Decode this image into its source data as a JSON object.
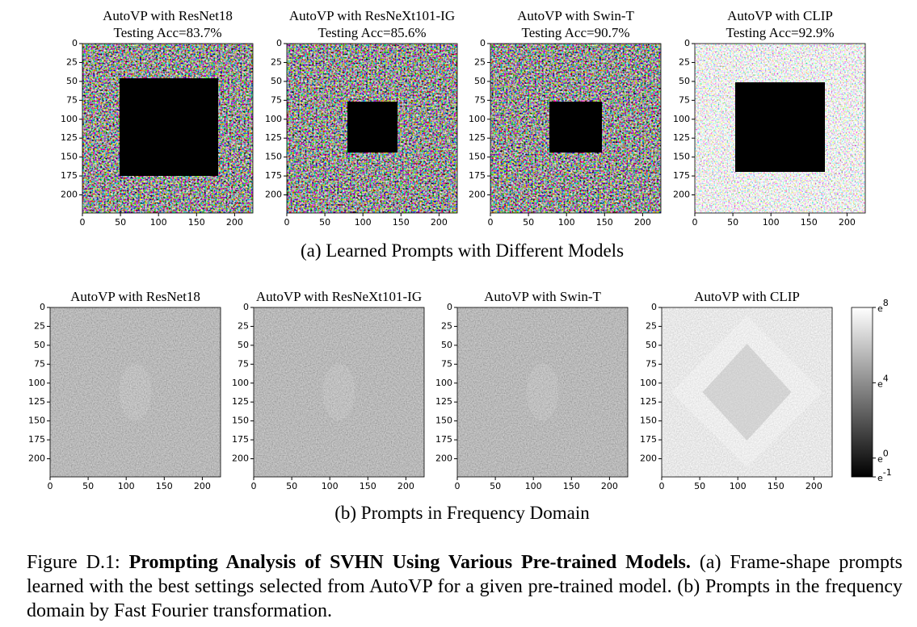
{
  "panels_a": [
    {
      "title": "AutoVP with ResNet18",
      "subtitle": "Testing Acc=83.7%"
    },
    {
      "title": "AutoVP with ResNeXt101-IG",
      "subtitle": "Testing Acc=85.6%"
    },
    {
      "title": "AutoVP with Swin-T",
      "subtitle": "Testing Acc=90.7%"
    },
    {
      "title": "AutoVP with CLIP",
      "subtitle": "Testing Acc=92.9%"
    }
  ],
  "caption_a": "(a) Learned Prompts with Different Models",
  "panels_b": [
    {
      "title": "AutoVP with ResNet18"
    },
    {
      "title": "AutoVP with ResNeXt101-IG"
    },
    {
      "title": "AutoVP with Swin-T"
    },
    {
      "title": "AutoVP with CLIP"
    }
  ],
  "caption_b": "(b) Prompts in Frequency Domain",
  "axes": {
    "xlim": [
      0,
      224
    ],
    "ylim": [
      0,
      224
    ],
    "xticks": [
      0,
      50,
      100,
      150,
      200
    ],
    "yticks": [
      0,
      25,
      50,
      75,
      100,
      125,
      150,
      175,
      200
    ]
  },
  "colorbar": {
    "base": "e",
    "lim": [
      -1,
      8
    ],
    "ticks": [
      8,
      4,
      0,
      -1
    ]
  },
  "figure_caption": {
    "label": "Figure D.1:",
    "title": "Prompting Analysis of SVHN Using Various Pre-trained Models.",
    "text": "(a) Frame-shape prompts learned with the best settings selected from AutoVP for a given pre-trained model. (b) Prompts in the frequency domain by Fast Fourier transformation."
  }
}
